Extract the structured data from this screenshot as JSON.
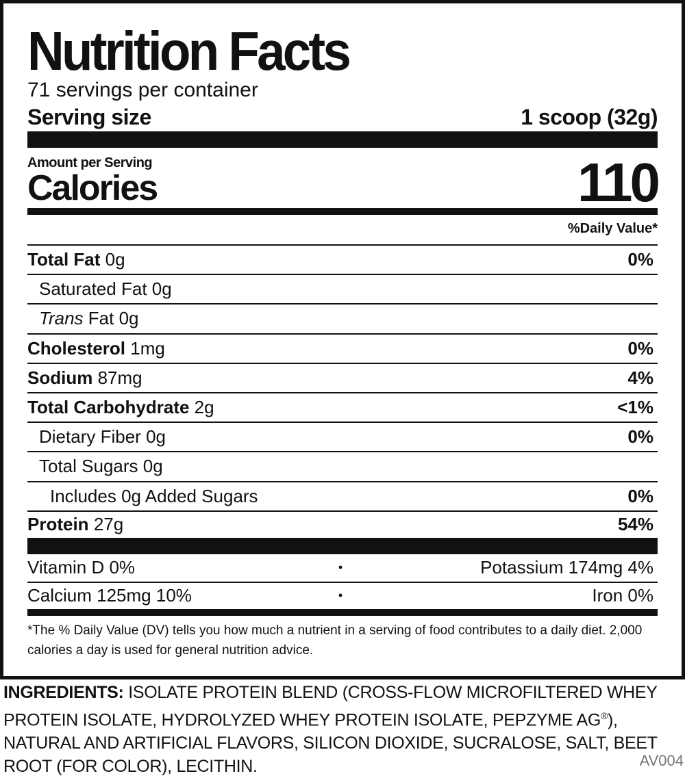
{
  "title": "Nutrition Facts",
  "servings": "71 servings per container",
  "serving_size_label": "Serving size",
  "serving_size_value": "1 scoop (32g)",
  "amount_per_serving": "Amount per Serving",
  "calories_label": "Calories",
  "calories_value": "110",
  "dv_header": "%Daily Value*",
  "nutrients": [
    {
      "name": "Total Fat",
      "amount": "0g",
      "dv": "0%"
    },
    {
      "name": "Saturated Fat",
      "amount": "0g",
      "dv": ""
    },
    {
      "name_italic": "Trans",
      "name": "Fat",
      "amount": "0g",
      "dv": ""
    },
    {
      "name": "Cholesterol",
      "amount": "1mg",
      "dv": "0%"
    },
    {
      "name": "Sodium",
      "amount": "87mg",
      "dv": "4%"
    },
    {
      "name": "Total Carbohydrate",
      "amount": "2g",
      "dv": "<1%"
    },
    {
      "name": "Dietary Fiber",
      "amount": "0g",
      "dv": "0%"
    },
    {
      "name": "Total Sugars",
      "amount": "0g",
      "dv": ""
    },
    {
      "name": "Includes 0g Added Sugars",
      "dv": "0%"
    },
    {
      "name": "Protein",
      "amount": "27g",
      "dv": "54%"
    }
  ],
  "vitamins": [
    {
      "left": "Vitamin D 0%",
      "sep": "•",
      "right": "Potassium 174mg 4%"
    },
    {
      "left": "Calcium 125mg 10%",
      "sep": "•",
      "right": "Iron 0%"
    }
  ],
  "footnote": "*The % Daily Value (DV) tells you how much a nutrient in a serving of food contributes to a daily diet. 2,000 calories a day is used for general nutrition advice.",
  "ingredients_label": "INGREDIENTS:",
  "ingredients_text": "ISOLATE PROTEIN BLEND (CROSS-FLOW MICROFILTERED WHEY PROTEIN ISOLATE, HYDROLYZED WHEY PROTEIN ISOLATE, PEPZYME AG",
  "ingredients_reg": "®",
  "ingredients_rest": "), NATURAL AND ARTIFICIAL FLAVORS, SILICON DIOXIDE, SUCRALOSE, SALT, BEET ROOT (FOR COLOR), LECITHIN.",
  "code": "AV004"
}
